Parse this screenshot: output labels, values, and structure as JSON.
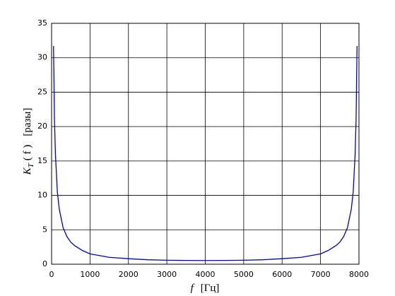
{
  "chart_data": {
    "type": "line",
    "xlabel": {
      "symbol": "f",
      "unit": "[Гц]"
    },
    "ylabel": {
      "symbol": "K",
      "subscript": "T",
      "args": "( f )",
      "unit": "[разы]"
    },
    "x": [
      50,
      75,
      100,
      150,
      200,
      300,
      400,
      500,
      600,
      800,
      1000,
      1500,
      2000,
      2500,
      3000,
      3500,
      4000,
      4500,
      5000,
      5500,
      6000,
      6500,
      7000,
      7200,
      7400,
      7500,
      7600,
      7700,
      7800,
      7850,
      7900,
      7925,
      7950
    ],
    "series": [
      {
        "color": "#0000cc",
        "values": [
          31.7,
          21,
          16,
          10.5,
          8,
          5.3,
          4,
          3.2,
          2.7,
          2,
          1.5,
          1,
          0.8,
          0.65,
          0.58,
          0.55,
          0.54,
          0.55,
          0.58,
          0.65,
          0.8,
          1,
          1.5,
          2,
          2.7,
          3.2,
          4,
          5.3,
          8,
          10.5,
          16,
          21,
          31.7
        ]
      }
    ],
    "xlim": [
      0,
      8000
    ],
    "xticks": [
      0,
      1000,
      2000,
      3000,
      4000,
      5000,
      6000,
      7000,
      8000
    ],
    "ylim": [
      0,
      35
    ],
    "yticks": [
      0,
      5,
      10,
      15,
      20,
      25,
      30,
      35
    ],
    "grid": true
  }
}
